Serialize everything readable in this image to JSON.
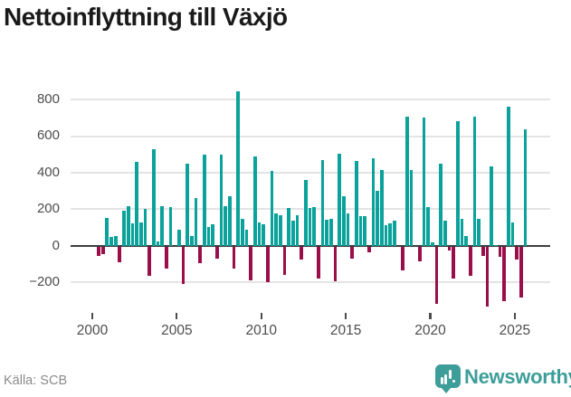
{
  "title": "Nettoinflyttning till Växjö",
  "source": "Källa: SCB",
  "brand": "Newsworthy",
  "colors": {
    "positive_bar": "#0aa29b",
    "negative_bar": "#9a0e4a",
    "gridline": "#e4e4e4",
    "zero_axis": "#3e3e3e",
    "tick_label": "#4d4d4d",
    "title_text": "#1a1a1a",
    "source_text": "#8b8b8b",
    "brand_teal": "#3d9e99"
  },
  "chart_data": {
    "type": "bar",
    "title": "Nettoinflyttning till Växjö",
    "frequency": "quarterly",
    "start_period": "2000 Q2",
    "end_period": "2025 Q3",
    "x_ticks": [
      2000,
      2005,
      2010,
      2015,
      2020,
      2025
    ],
    "y_ticks": [
      800,
      600,
      400,
      200,
      0,
      -200
    ],
    "ylim": [
      -340,
      880
    ],
    "grid": true,
    "legend": "none",
    "values": [
      -46,
      -36,
      153,
      46,
      55,
      -82,
      190,
      214,
      124,
      461,
      127,
      202,
      -156,
      530,
      21,
      214,
      -115,
      211,
      0,
      90,
      -202,
      450,
      53,
      263,
      -86,
      499,
      104,
      115,
      -63,
      498,
      214,
      272,
      -115,
      845,
      148,
      90,
      -181,
      486,
      128,
      119,
      -189,
      409,
      175,
      165,
      -150,
      205,
      137,
      167,
      -67,
      358,
      205,
      213,
      -170,
      467,
      142,
      147,
      -188,
      505,
      270,
      175,
      -62,
      463,
      163,
      163,
      -30,
      480,
      300,
      412,
      112,
      120,
      137,
      0,
      -125,
      708,
      412,
      0,
      -77,
      700,
      211,
      20,
      -310,
      450,
      137,
      -17,
      -173,
      679,
      148,
      53,
      -157,
      705,
      145,
      -50,
      -327,
      433,
      5,
      -53,
      -295,
      762,
      127,
      -67,
      -277,
      639
    ]
  }
}
